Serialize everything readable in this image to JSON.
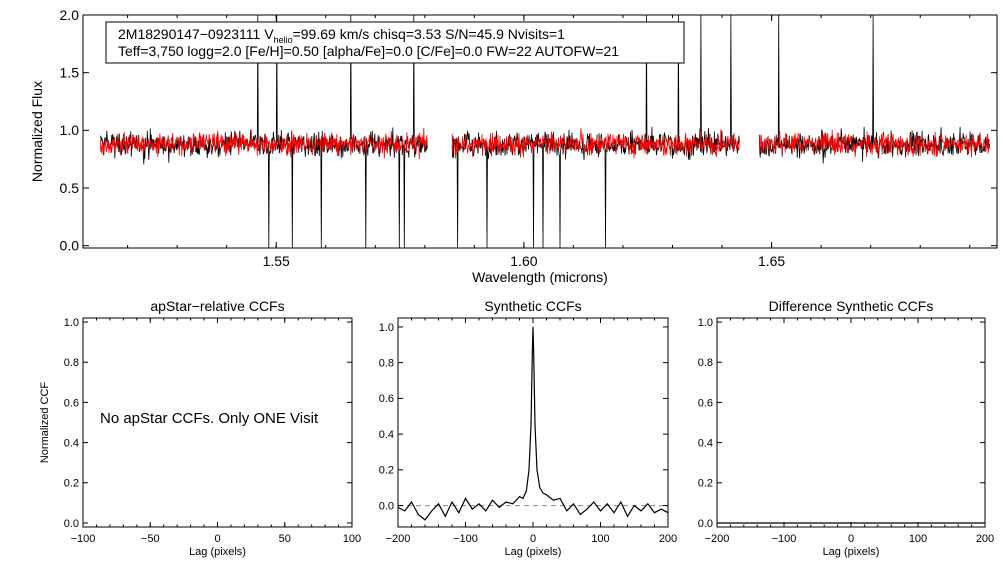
{
  "header": {
    "line1_a": "2M18290147−0923111  V",
    "line1_sub": "helio",
    "line1_b": "=99.69 km/s  chisq=3.53  S/N=45.9  Nvisits=1",
    "line2": "Teff=3,750 logg=2.0 [Fe/H]=0.50 [alpha/Fe]=0.0 [C/Fe]=0.0 FW=22 AUTOFW=21"
  },
  "colors": {
    "observed": "#000000",
    "model": "#ff0000",
    "axis": "#000000",
    "zero_line": "#888888"
  },
  "chart_data": [
    {
      "id": "spectrum",
      "type": "line",
      "title": "",
      "xlabel": "Wavelength (microns)",
      "ylabel": "Normalized Flux",
      "xlim": [
        1.511,
        1.6955
      ],
      "ylim": [
        -0.02,
        2.0
      ],
      "xticks": [
        1.55,
        1.6,
        1.65
      ],
      "xtick_labels": [
        "1.55",
        "1.60",
        "1.65"
      ],
      "yticks": [
        0.0,
        0.5,
        1.0,
        1.5,
        2.0
      ],
      "ytick_labels": [
        "0.0",
        "0.5",
        "1.0",
        "1.5",
        "2.0"
      ],
      "chip_ranges": [
        [
          1.5145,
          1.5805
        ],
        [
          1.5855,
          1.6435
        ],
        [
          1.6475,
          1.694
        ]
      ],
      "series": [
        {
          "name": "observed",
          "mean": 0.88,
          "noise": 0.08
        },
        {
          "name": "model",
          "mean": 0.88,
          "noise": 0.07
        }
      ]
    },
    {
      "id": "apstar",
      "type": "line",
      "title": "apStar−relative CCFs",
      "xlabel": "Lag (pixels)",
      "ylabel": "Normalized CCF",
      "xlim": [
        -100,
        100
      ],
      "ylim": [
        -0.02,
        1.02
      ],
      "xticks": [
        -100,
        -50,
        0,
        50,
        100
      ],
      "xtick_labels": [
        "−100",
        "−50",
        "0",
        "50",
        "100"
      ],
      "yticks": [
        0.0,
        0.2,
        0.4,
        0.6,
        0.8,
        1.0
      ],
      "ytick_labels": [
        "0.0",
        "0.2",
        "0.4",
        "0.6",
        "0.8",
        "1.0"
      ],
      "message": "No apStar CCFs.  Only ONE Visit",
      "series": []
    },
    {
      "id": "synthetic",
      "type": "line",
      "title": "Synthetic CCFs",
      "xlabel": "Lag (pixels)",
      "ylabel": "",
      "xlim": [
        -200,
        200
      ],
      "ylim": [
        -0.12,
        1.05
      ],
      "xticks": [
        -200,
        -100,
        0,
        100,
        200
      ],
      "xtick_labels": [
        "−200",
        "−100",
        "0",
        "100",
        "200"
      ],
      "yticks": [
        0.0,
        0.2,
        0.4,
        0.6,
        0.8,
        1.0
      ],
      "ytick_labels": [
        "0.0",
        "0.2",
        "0.4",
        "0.6",
        "0.8",
        "1.0"
      ],
      "baseline": 0.0,
      "series": [
        {
          "name": "CCF",
          "x": [
            -200,
            -190,
            -180,
            -170,
            -160,
            -150,
            -140,
            -130,
            -120,
            -110,
            -100,
            -90,
            -80,
            -70,
            -60,
            -50,
            -40,
            -30,
            -20,
            -15,
            -10,
            -6,
            -3,
            -1,
            0,
            1,
            3,
            6,
            10,
            15,
            20,
            30,
            40,
            50,
            60,
            70,
            80,
            90,
            100,
            110,
            120,
            130,
            140,
            150,
            160,
            170,
            180,
            190,
            200
          ],
          "y": [
            -0.01,
            -0.03,
            0.02,
            -0.05,
            -0.08,
            -0.03,
            0.01,
            -0.06,
            0.02,
            -0.04,
            0.04,
            -0.02,
            0.01,
            -0.03,
            0.03,
            -0.01,
            0.02,
            0.01,
            0.05,
            0.04,
            0.08,
            0.2,
            0.45,
            0.85,
            1.0,
            0.85,
            0.45,
            0.2,
            0.1,
            0.07,
            0.06,
            0.03,
            0.04,
            -0.03,
            0.01,
            -0.05,
            -0.02,
            0.02,
            -0.03,
            0.01,
            -0.04,
            0.02,
            -0.06,
            0.0,
            -0.03,
            0.01,
            -0.04,
            -0.02,
            -0.04
          ]
        }
      ]
    },
    {
      "id": "difference",
      "type": "line",
      "title": "Difference Synthetic CCFs",
      "xlabel": "Lag (pixels)",
      "ylabel": "",
      "xlim": [
        -200,
        200
      ],
      "ylim": [
        -0.02,
        1.02
      ],
      "xticks": [
        -200,
        -100,
        0,
        100,
        200
      ],
      "xtick_labels": [
        "−200",
        "−100",
        "0",
        "100",
        "200"
      ],
      "yticks": [
        0.0,
        0.2,
        0.4,
        0.6,
        0.8,
        1.0
      ],
      "ytick_labels": [
        "0.0",
        "0.2",
        "0.4",
        "0.6",
        "0.8",
        "1.0"
      ],
      "series": [
        {
          "name": "difference",
          "x": [
            -200,
            200
          ],
          "y": [
            0.0,
            0.0
          ]
        }
      ]
    }
  ]
}
